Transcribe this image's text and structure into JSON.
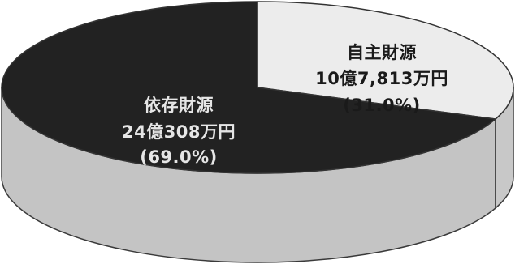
{
  "chart_data": {
    "type": "pie",
    "style": "3d-tilted",
    "slices": [
      {
        "name": "自主財源",
        "amount_label": "10億7,813万円",
        "percent_label": "(31.0%)",
        "value": 31.0,
        "color": "#ececec",
        "side_color": "#c8c8c8",
        "text_color": "#1a1a1a"
      },
      {
        "name": "依存財源",
        "amount_label": "24億308万円",
        "percent_label": "(69.0%)",
        "value": 69.0,
        "color": "#222222",
        "side_color": "#c4c4c4",
        "text_color": "#e6e6e6"
      }
    ],
    "start_angle_deg": -90,
    "direction": "clockwise"
  }
}
